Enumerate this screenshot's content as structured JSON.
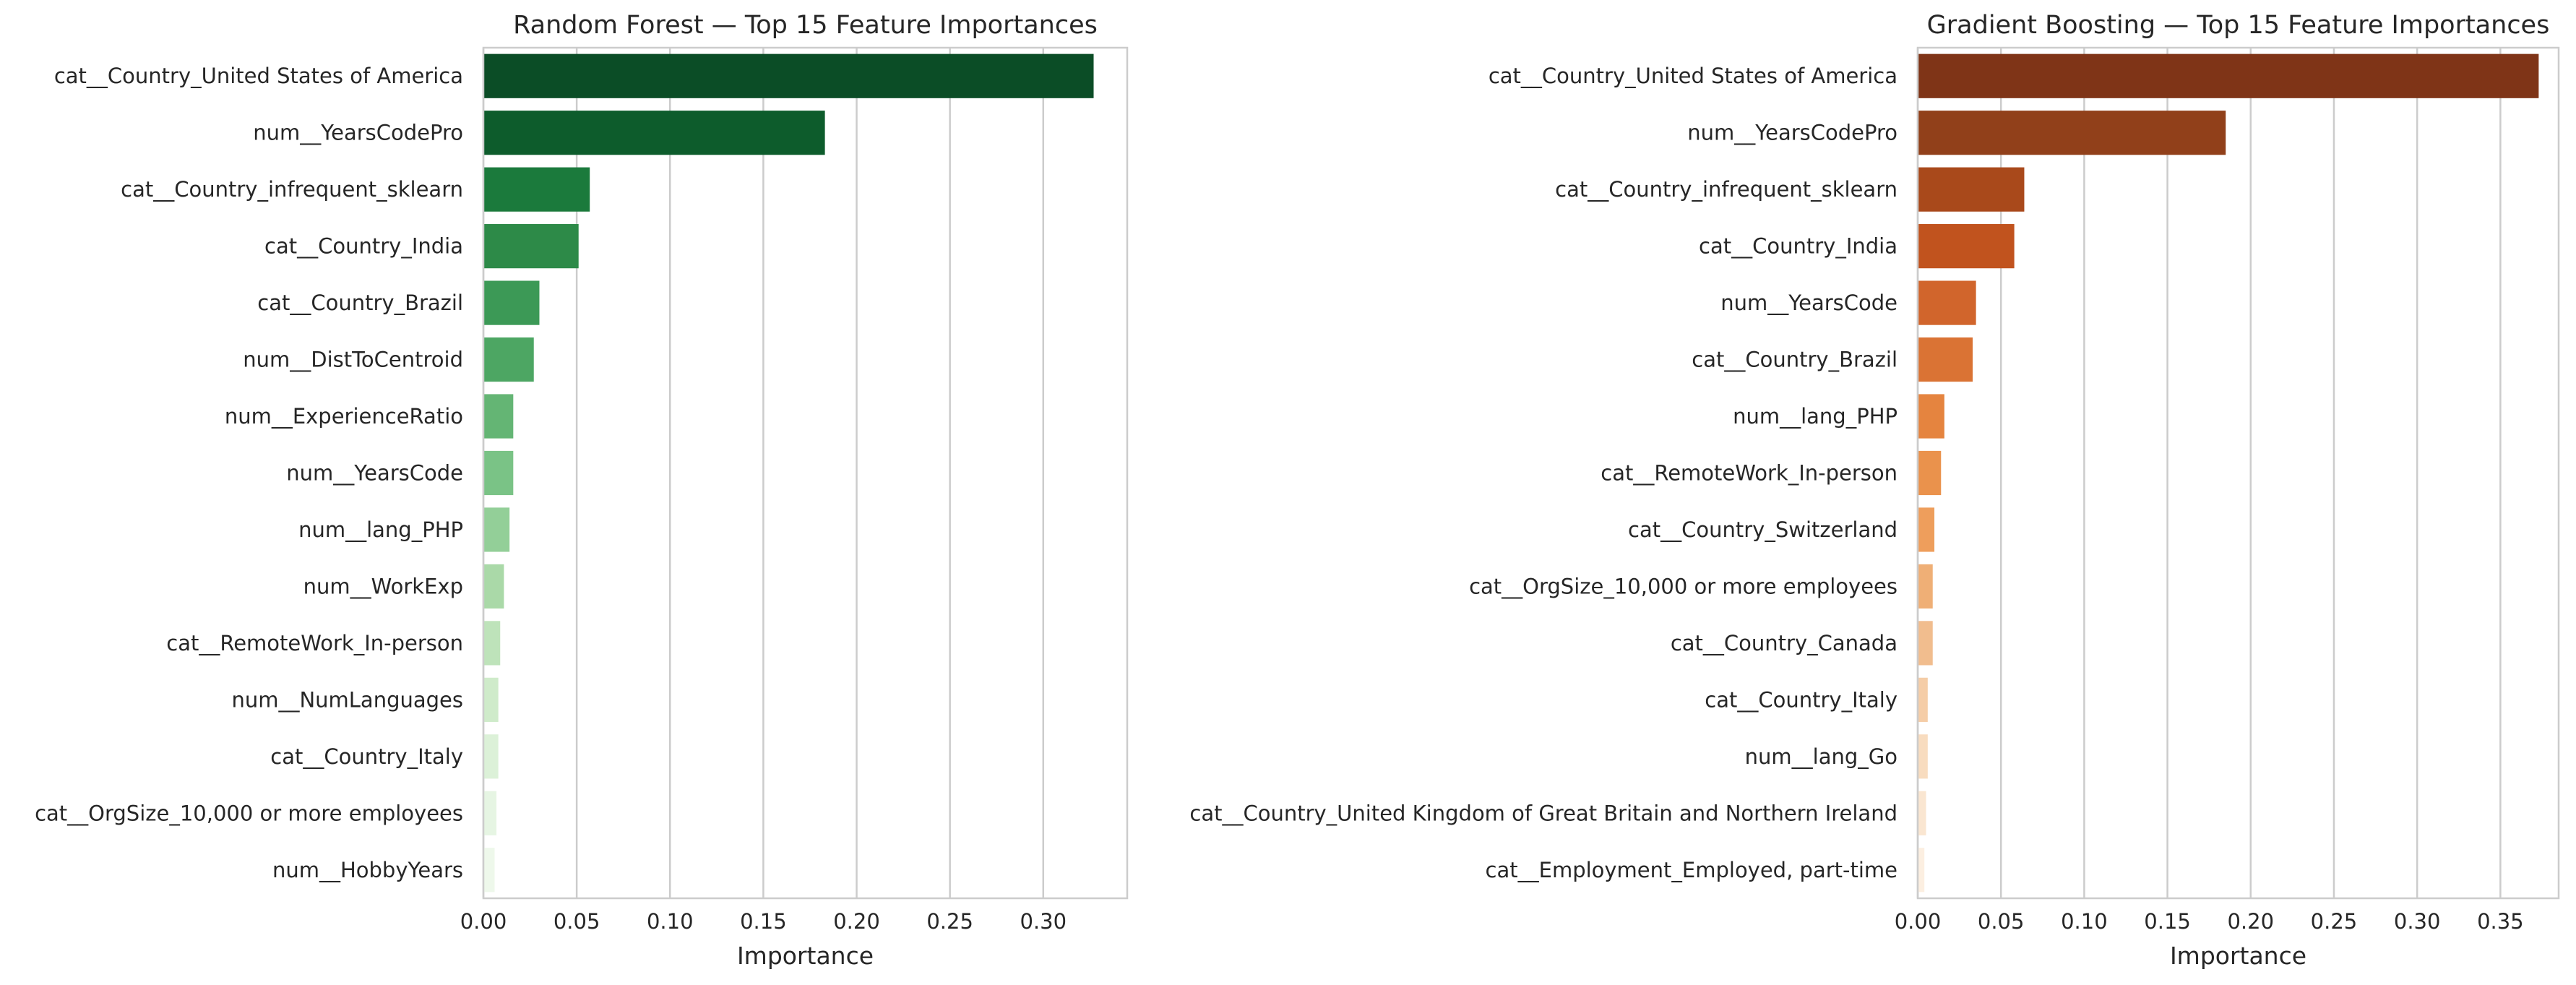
{
  "chart_data": [
    {
      "type": "bar",
      "orientation": "horizontal",
      "title": "Random Forest — Top 15 Feature Importances",
      "xlabel": "Importance",
      "ylabel": "",
      "xlim": [
        0,
        0.345
      ],
      "xticks": [
        "0.00",
        "0.05",
        "0.10",
        "0.15",
        "0.20",
        "0.25",
        "0.30"
      ],
      "grid": "vertical",
      "palette": "Greens (dark to light)",
      "colors": [
        "#0b4d26",
        "#0d5c2c",
        "#1b7a3c",
        "#2d8a48",
        "#3c9956",
        "#4da663",
        "#64b574",
        "#7ac386",
        "#93cf98",
        "#aad9a8",
        "#bee3ba",
        "#cfebca",
        "#dcf1d8",
        "#e6f5e3",
        "#eef8eb"
      ],
      "categories": [
        "cat__Country_United States of America",
        "num__YearsCodePro",
        "cat__Country_infrequent_sklearn",
        "cat__Country_India",
        "cat__Country_Brazil",
        "num__DistToCentroid",
        "num__ExperienceRatio",
        "num__YearsCode",
        "num__lang_PHP",
        "num__WorkExp",
        "cat__RemoteWork_In-person",
        "num__NumLanguages",
        "cat__Country_Italy",
        "cat__OrgSize_10,000 or more employees",
        "num__HobbyYears"
      ],
      "values": [
        0.327,
        0.183,
        0.057,
        0.051,
        0.03,
        0.027,
        0.016,
        0.016,
        0.014,
        0.011,
        0.009,
        0.008,
        0.008,
        0.007,
        0.006
      ]
    },
    {
      "type": "bar",
      "orientation": "horizontal",
      "title": "Gradient Boosting — Top 15 Feature Importances",
      "xlabel": "Importance",
      "ylabel": "",
      "xlim": [
        0,
        0.385
      ],
      "xticks": [
        "0.00",
        "0.05",
        "0.10",
        "0.15",
        "0.20",
        "0.25",
        "0.30",
        "0.35"
      ],
      "grid": "vertical",
      "palette": "Oranges (dark to light)",
      "colors": [
        "#7f3417",
        "#91401a",
        "#a9491b",
        "#c1531e",
        "#d1652c",
        "#da7334",
        "#e5843f",
        "#ea924c",
        "#ee9e5c",
        "#efaf76",
        "#f1bd8e",
        "#f5cda7",
        "#f8dcbf",
        "#fae6d1",
        "#fcefe1"
      ],
      "categories": [
        "cat__Country_United States of America",
        "num__YearsCodePro",
        "cat__Country_infrequent_sklearn",
        "cat__Country_India",
        "num__YearsCode",
        "cat__Country_Brazil",
        "num__lang_PHP",
        "cat__RemoteWork_In-person",
        "cat__Country_Switzerland",
        "cat__OrgSize_10,000 or more employees",
        "cat__Country_Canada",
        "cat__Country_Italy",
        "num__lang_Go",
        "cat__Country_United Kingdom of Great Britain and Northern Ireland",
        "cat__Employment_Employed, part-time"
      ],
      "values": [
        0.373,
        0.185,
        0.064,
        0.058,
        0.035,
        0.033,
        0.016,
        0.014,
        0.01,
        0.009,
        0.009,
        0.006,
        0.006,
        0.005,
        0.004
      ]
    }
  ]
}
